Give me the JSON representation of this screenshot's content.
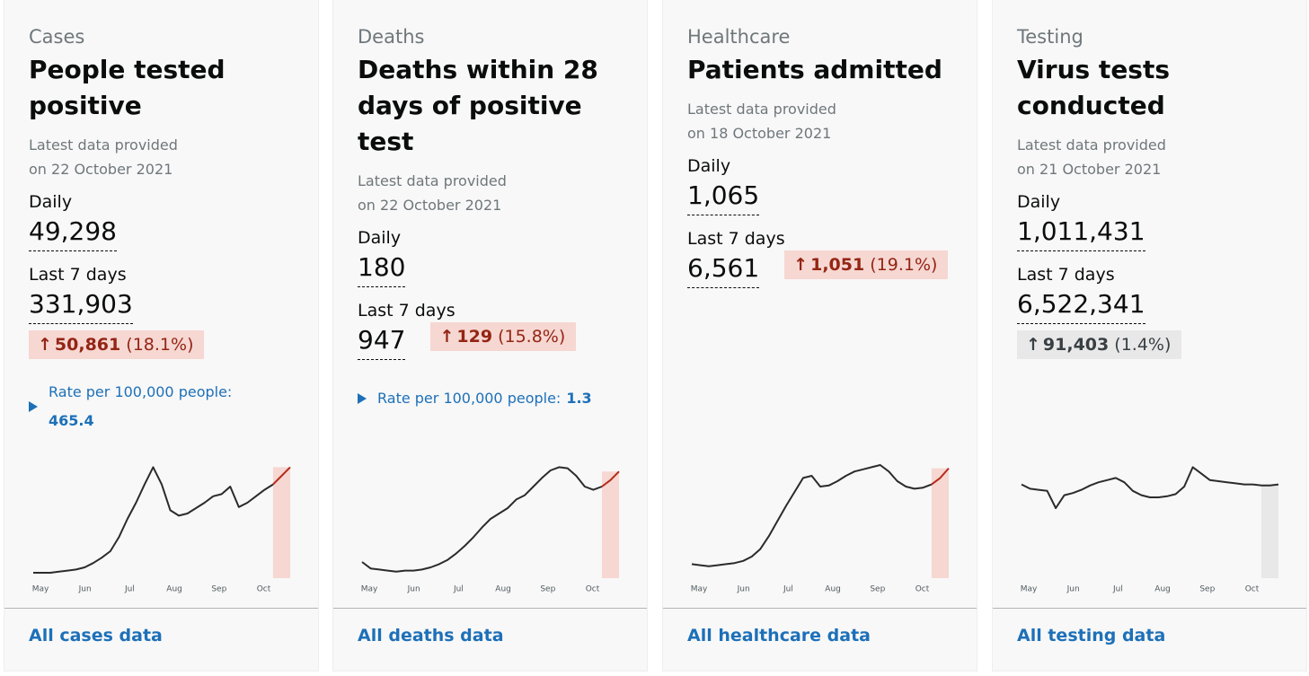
{
  "cards": [
    {
      "category": "Cases",
      "title": "People tested positive",
      "updated_label": "Latest data provided",
      "updated_date": "on 22 October 2021",
      "daily_label": "Daily",
      "daily": "49,298",
      "last7_label": "Last 7 days",
      "last7": "331,903",
      "change": {
        "value": "50,861",
        "percent": "(18.1%)",
        "color": "#942514",
        "background": "#f6d7d2"
      },
      "rate": {
        "label": "Rate per 100,000 people:",
        "value": "465.4"
      },
      "chart": {
        "type": "line",
        "x_labels": [
          "May",
          "Jun",
          "Jul",
          "Aug",
          "Sep",
          "Oct"
        ],
        "ylim": [
          0,
          100
        ],
        "color": "#2b2b2b",
        "highlight_color": "#f6d7d2",
        "highlight_line": "#b52a1a",
        "values": [
          0,
          0,
          0,
          1,
          2,
          3,
          5,
          9,
          14,
          20,
          33,
          50,
          65,
          82,
          98,
          82,
          58,
          53,
          55,
          60,
          65,
          71,
          73,
          80,
          61,
          65,
          71,
          77,
          82,
          90,
          98
        ]
      },
      "link": "All cases data"
    },
    {
      "category": "Deaths",
      "title": "Deaths within 28 days of positive test",
      "updated_label": "Latest data provided",
      "updated_date": "on 22 October 2021",
      "daily_label": "Daily",
      "daily": "180",
      "last7_label": "Last 7 days",
      "last7": "947",
      "change": {
        "value": "129",
        "percent": "(15.8%)",
        "color": "#942514",
        "background": "#f6d7d2"
      },
      "rate": {
        "label": "Rate per 100,000 people:",
        "value": "1.3"
      },
      "chart": {
        "type": "line",
        "x_labels": [
          "May",
          "Jun",
          "Jul",
          "Aug",
          "Sep",
          "Oct"
        ],
        "ylim": [
          0,
          100
        ],
        "color": "#2b2b2b",
        "highlight_color": "#f6d7d2",
        "highlight_line": "#b52a1a",
        "values": [
          10,
          4,
          3,
          2,
          1,
          2,
          2,
          3,
          5,
          8,
          12,
          18,
          25,
          33,
          42,
          50,
          55,
          60,
          68,
          72,
          80,
          88,
          95,
          98,
          97,
          90,
          80,
          77,
          80,
          86,
          94
        ]
      },
      "link": "All deaths data"
    },
    {
      "category": "Healthcare",
      "title": "Patients admitted",
      "updated_label": "Latest data provided",
      "updated_date": "on 18 October 2021",
      "daily_label": "Daily",
      "daily": "1,065",
      "last7_label": "Last 7 days",
      "last7": "6,561",
      "change": {
        "value": "1,051",
        "percent": "(19.1%)",
        "color": "#942514",
        "background": "#f6d7d2"
      },
      "chart": {
        "type": "line",
        "x_labels": [
          "May",
          "Jun",
          "Jul",
          "Aug",
          "Sep",
          "Oct"
        ],
        "ylim": [
          0,
          100
        ],
        "color": "#2b2b2b",
        "highlight_color": "#f6d7d2",
        "highlight_line": "#b52a1a",
        "values": [
          8,
          7,
          6,
          7,
          8,
          9,
          11,
          15,
          22,
          34,
          48,
          62,
          75,
          88,
          90,
          80,
          81,
          85,
          90,
          94,
          96,
          98,
          100,
          94,
          85,
          80,
          78,
          79,
          82,
          88,
          97
        ]
      },
      "link": "All healthcare data"
    },
    {
      "category": "Testing",
      "title": "Virus tests conducted",
      "updated_label": "Latest data provided",
      "updated_date": "on 21 October 2021",
      "daily_label": "Daily",
      "daily": "1,011,431",
      "last7_label": "Last 7 days",
      "last7": "6,522,341",
      "change": {
        "value": "91,403",
        "percent": "(1.4%)",
        "color": "#383f43",
        "background": "#e8e8e8"
      },
      "chart": {
        "type": "line",
        "x_labels": [
          "May",
          "Jun",
          "Jul",
          "Aug",
          "Sep",
          "Oct"
        ],
        "ylim": [
          0,
          100
        ],
        "color": "#2b2b2b",
        "highlight_color": "#e8e8e8",
        "highlight_line": "#2b2b2b",
        "values": [
          82,
          78,
          77,
          76,
          60,
          72,
          74,
          77,
          81,
          84,
          86,
          88,
          84,
          76,
          72,
          70,
          70,
          71,
          73,
          80,
          98,
          92,
          86,
          85,
          84,
          83,
          82,
          82,
          81,
          81,
          82
        ]
      },
      "link": "All testing data"
    }
  ]
}
